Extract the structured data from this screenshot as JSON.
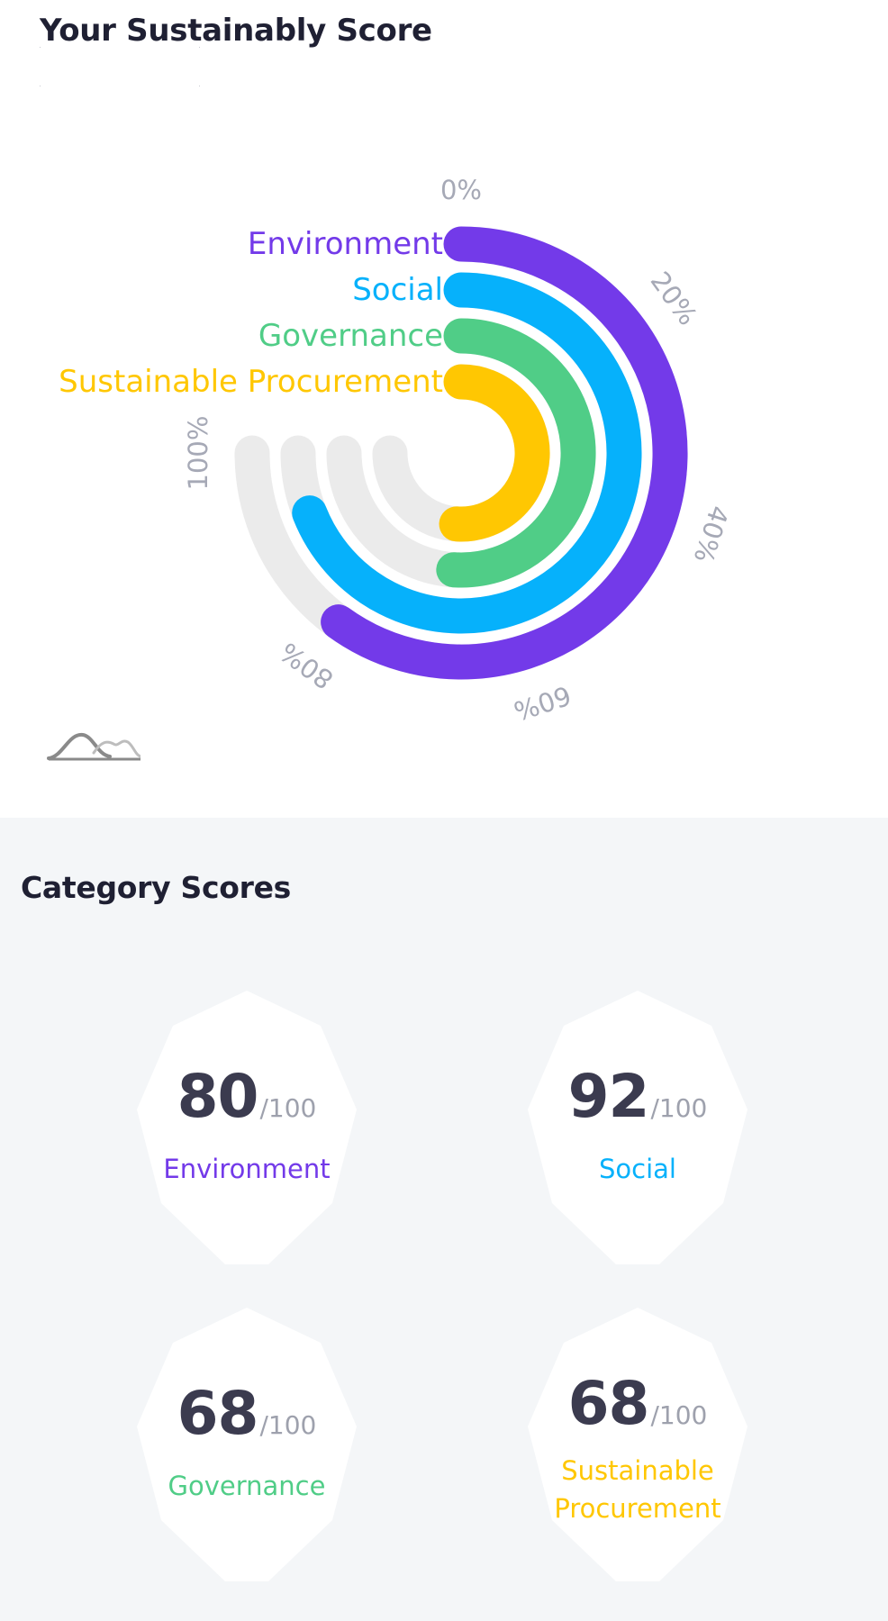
{
  "header": {
    "title": "Your Sustainably Score"
  },
  "chart_data": {
    "type": "radial-bar",
    "tick_labels": [
      "0%",
      "20%",
      "40%",
      "60%",
      "80%",
      "100%"
    ],
    "max": 100,
    "series": [
      {
        "name": "Environment",
        "value": 80,
        "color": "#733ae9"
      },
      {
        "name": "Social",
        "value": 92,
        "color": "#06b1fb"
      },
      {
        "name": "Governance",
        "value": 68,
        "color": "#50cd87"
      },
      {
        "name": "Sustainable Procurement",
        "value": 68,
        "color": "#ffc702"
      }
    ],
    "track_color": "#ebebeb"
  },
  "category_scores": {
    "title": "Category Scores",
    "items": [
      {
        "value": "80",
        "max": "/100",
        "label": "Environment",
        "color": "#733ae9"
      },
      {
        "value": "92",
        "max": "/100",
        "label": "Social",
        "color": "#06b1fb"
      },
      {
        "value": "68",
        "max": "/100",
        "label": "Governance",
        "color": "#50cd87"
      },
      {
        "value": "68",
        "max": "/100",
        "label": "Sustainable Procurement",
        "color": "#ffc702"
      }
    ]
  },
  "icons": {
    "chart_logo": "mountain-wave-icon"
  }
}
